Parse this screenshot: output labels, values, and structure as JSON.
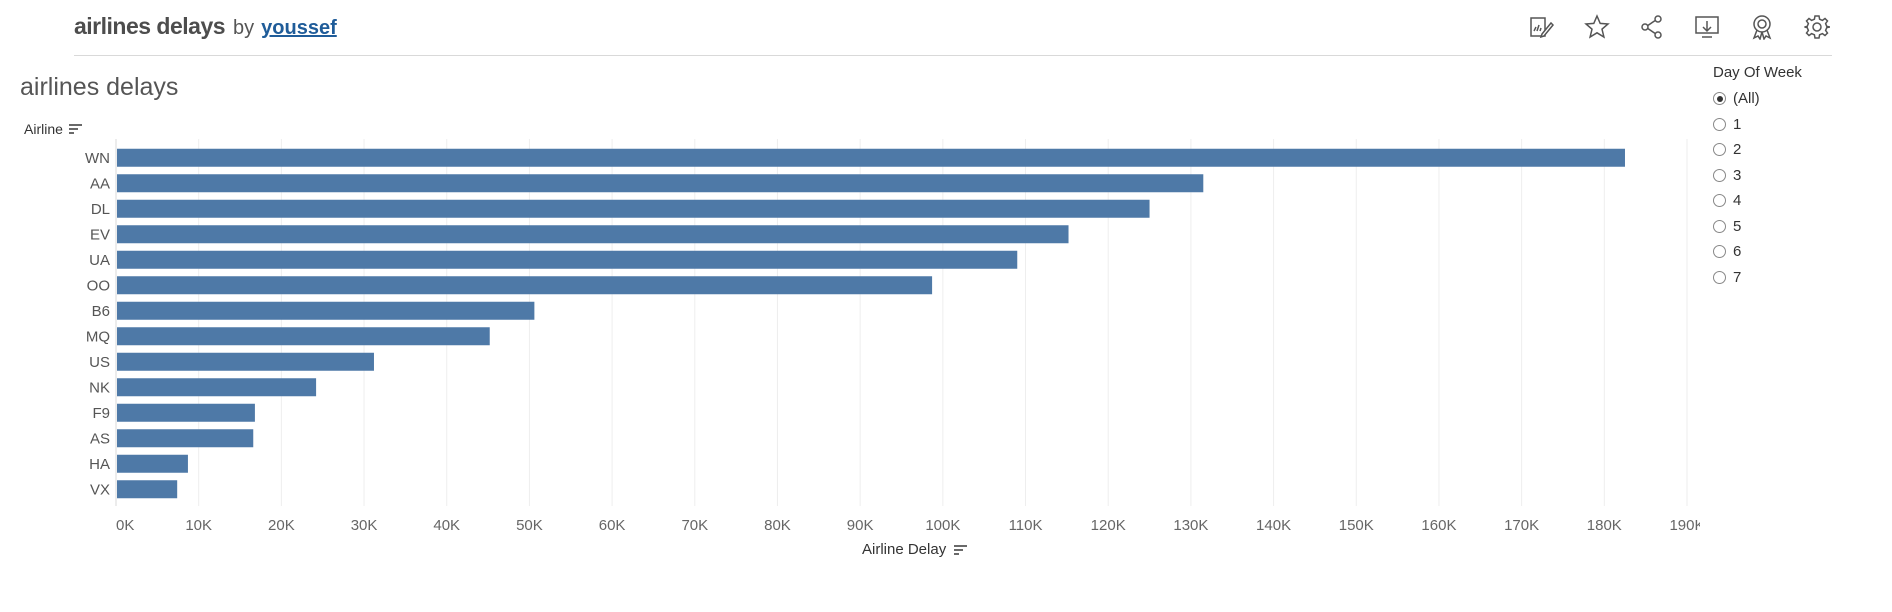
{
  "header": {
    "viz_title": "airlines delays",
    "by_label": "by",
    "author": "youssef"
  },
  "toolbar": {
    "icons": [
      "edit-icon",
      "star-icon",
      "share-icon",
      "download-icon",
      "badge-icon",
      "gear-icon"
    ]
  },
  "sheet": {
    "title": "airlines delays"
  },
  "filter": {
    "title": "Day Of Week",
    "options": [
      "(All)",
      "1",
      "2",
      "3",
      "4",
      "5",
      "6",
      "7"
    ],
    "selected": "(All)"
  },
  "chart_data": {
    "type": "bar",
    "orientation": "horizontal",
    "ylabel": "Airline",
    "xlabel": "Airline Delay",
    "categories": [
      "WN",
      "AA",
      "DL",
      "EV",
      "UA",
      "OO",
      "B6",
      "MQ",
      "US",
      "NK",
      "F9",
      "AS",
      "HA",
      "VX"
    ],
    "values": [
      182500,
      131500,
      125000,
      115200,
      109000,
      98700,
      50600,
      45200,
      31200,
      24200,
      16800,
      16600,
      8700,
      7400
    ],
    "xlim": [
      0,
      190000
    ],
    "ticks": [
      "0K",
      "10K",
      "20K",
      "30K",
      "40K",
      "50K",
      "60K",
      "70K",
      "80K",
      "90K",
      "100K",
      "110K",
      "120K",
      "130K",
      "140K",
      "150K",
      "160K",
      "170K",
      "180K",
      "190K"
    ],
    "bar_color": "#4e79a7",
    "grid": true
  }
}
